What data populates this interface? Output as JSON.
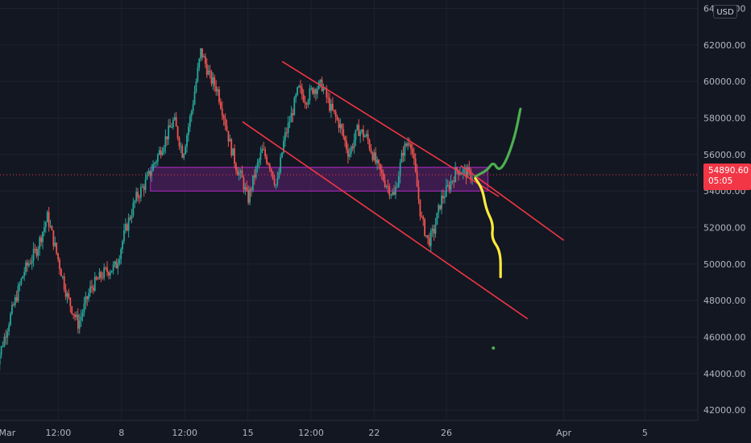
{
  "chart_data": {
    "type": "candlestick",
    "y_axis": {
      "currency": "USD",
      "range": [
        41700,
        64200
      ],
      "ticks": [
        42000,
        44000,
        46000,
        48000,
        50000,
        52000,
        54000,
        56000,
        58000,
        60000,
        62000,
        64000
      ],
      "tick_labels": [
        "42000.00",
        "44000.00",
        "46000.00",
        "48000.00",
        "50000.00",
        "52000.00",
        "54000.00",
        "56000.00",
        "58000.00",
        "60000.00",
        "62000.00",
        "64000.00"
      ]
    },
    "x_axis": {
      "tick_labels": [
        "Mar",
        "12:00",
        "8",
        "12:00",
        "15",
        "12:00",
        "22",
        "26",
        "Apr",
        "5"
      ],
      "start": "Mar 1",
      "end": "Apr 6"
    },
    "last_price": "54890.60",
    "countdown": "05:05",
    "price_path": [
      [
        1.0,
        44200
      ],
      [
        1.8,
        47000
      ],
      [
        2.6,
        49600
      ],
      [
        3.3,
        50800
      ],
      [
        3.9,
        52600
      ],
      [
        4.5,
        50200
      ],
      [
        5.0,
        48200
      ],
      [
        5.6,
        46700
      ],
      [
        6.3,
        48700
      ],
      [
        7.0,
        49500
      ],
      [
        7.7,
        49900
      ],
      [
        8.2,
        51800
      ],
      [
        8.8,
        53600
      ],
      [
        9.3,
        54400
      ],
      [
        9.9,
        55700
      ],
      [
        10.4,
        56800
      ],
      [
        10.9,
        57900
      ],
      [
        11.4,
        56000
      ],
      [
        11.9,
        58500
      ],
      [
        12.4,
        61700
      ],
      [
        12.9,
        60200
      ],
      [
        13.3,
        59600
      ],
      [
        13.7,
        58000
      ],
      [
        14.0,
        56600
      ],
      [
        14.4,
        55200
      ],
      [
        14.7,
        54600
      ],
      [
        15.0,
        53500
      ],
      [
        15.4,
        55000
      ],
      [
        15.8,
        56200
      ],
      [
        16.2,
        55500
      ],
      [
        16.6,
        54200
      ],
      [
        17.0,
        56800
      ],
      [
        17.4,
        58100
      ],
      [
        17.8,
        59600
      ],
      [
        18.2,
        59000
      ],
      [
        18.6,
        59600
      ],
      [
        19.1,
        59800
      ],
      [
        19.6,
        58500
      ],
      [
        20.1,
        57600
      ],
      [
        20.6,
        56000
      ],
      [
        21.1,
        57400
      ],
      [
        21.6,
        56900
      ],
      [
        22.1,
        55500
      ],
      [
        22.6,
        54500
      ],
      [
        23.1,
        53700
      ],
      [
        23.6,
        56200
      ],
      [
        24.0,
        56900
      ],
      [
        24.3,
        54800
      ],
      [
        24.6,
        52500
      ],
      [
        25.0,
        51200
      ],
      [
        25.3,
        51800
      ],
      [
        25.7,
        53500
      ],
      [
        26.1,
        54200
      ],
      [
        26.6,
        55200
      ],
      [
        27.1,
        55000
      ],
      [
        27.5,
        54800
      ]
    ],
    "annotations": [
      {
        "kind": "zone",
        "label": "support/resistance zone",
        "x": [
          9.6,
          28.3
        ],
        "y": [
          54000,
          55300
        ],
        "color": "#9c27b0"
      },
      {
        "kind": "trendline",
        "label": "upper channel line",
        "points": [
          [
            16.9,
            61100
          ],
          [
            28.9,
            53700
          ]
        ],
        "color": "#f23645"
      },
      {
        "kind": "trendline",
        "label": "upper channel extension",
        "points": [
          [
            26.8,
            55400
          ],
          [
            32.5,
            51300
          ]
        ],
        "color": "#f23645"
      },
      {
        "kind": "trendline",
        "label": "lower channel line",
        "points": [
          [
            14.7,
            57800
          ],
          [
            30.5,
            47000
          ]
        ],
        "color": "#f23645"
      },
      {
        "kind": "projection",
        "label": "bullish path",
        "color": "#4caf50",
        "points": [
          [
            27.6,
            54800
          ],
          [
            28.0,
            55000
          ],
          [
            28.3,
            55200
          ],
          [
            28.6,
            55600
          ],
          [
            28.9,
            55100
          ],
          [
            29.3,
            55600
          ],
          [
            29.8,
            57000
          ],
          [
            30.1,
            58500
          ]
        ]
      },
      {
        "kind": "projection",
        "label": "bearish path",
        "color": "#ffeb3b",
        "points": [
          [
            27.6,
            54700
          ],
          [
            28.0,
            54100
          ],
          [
            28.2,
            53000
          ],
          [
            28.6,
            52200
          ],
          [
            28.5,
            51400
          ],
          [
            29.0,
            50700
          ],
          [
            29.0,
            49300
          ]
        ]
      },
      {
        "kind": "marker",
        "label": "dot",
        "point": [
          28.6,
          45400
        ],
        "color": "#4caf50"
      }
    ],
    "colors": {
      "up": "#26a69a",
      "down": "#ef5350",
      "background": "#131722",
      "grid": "#1e2230",
      "axis_text": "#b2b5be",
      "price_line": "#f23645"
    },
    "grid": true
  }
}
